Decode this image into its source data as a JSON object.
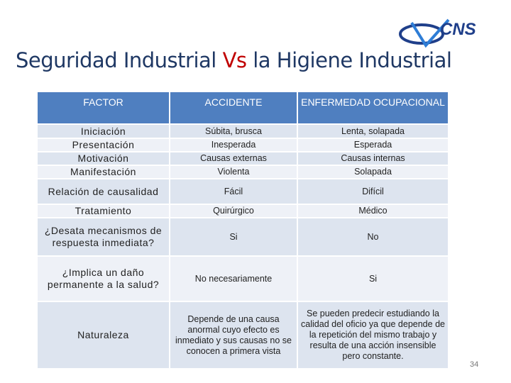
{
  "logo": {
    "text": "CNS"
  },
  "title": {
    "before": "Seguridad Industrial ",
    "highlight": "Vs",
    "after": " la Higiene Industrial"
  },
  "table": {
    "header": [
      "FACTOR",
      "ACCIDENTE",
      "ENFERMEDAD OCUPACIONAL"
    ],
    "rows": [
      [
        "Iniciación",
        "Súbita, brusca",
        "Lenta, solapada"
      ],
      [
        "Presentación",
        "Inesperada",
        "Esperada"
      ],
      [
        "Motivación",
        "Causas externas",
        "Causas internas"
      ],
      [
        "Manifestación",
        "Violenta",
        "Solapada"
      ],
      [
        "Relación de causalidad",
        "Fácil",
        "Difícil"
      ],
      [
        "Tratamiento",
        "Quirúrgico",
        "Médico"
      ],
      [
        "¿Desata mecanismos de respuesta inmediata?",
        "Si",
        "No"
      ],
      [
        "¿Implica un daño permanente a la salud?",
        "No necesariamente",
        "Si"
      ],
      [
        "Naturaleza",
        "Depende de una causa anormal cuyo efecto es inmediato y sus causas no se conocen a primera vista",
        "Se pueden predecir estudiando la calidad del oficio ya que depende de la repetición del mismo trabajo y resulta de una acción insensible pero constante."
      ]
    ]
  },
  "page_number": "34"
}
